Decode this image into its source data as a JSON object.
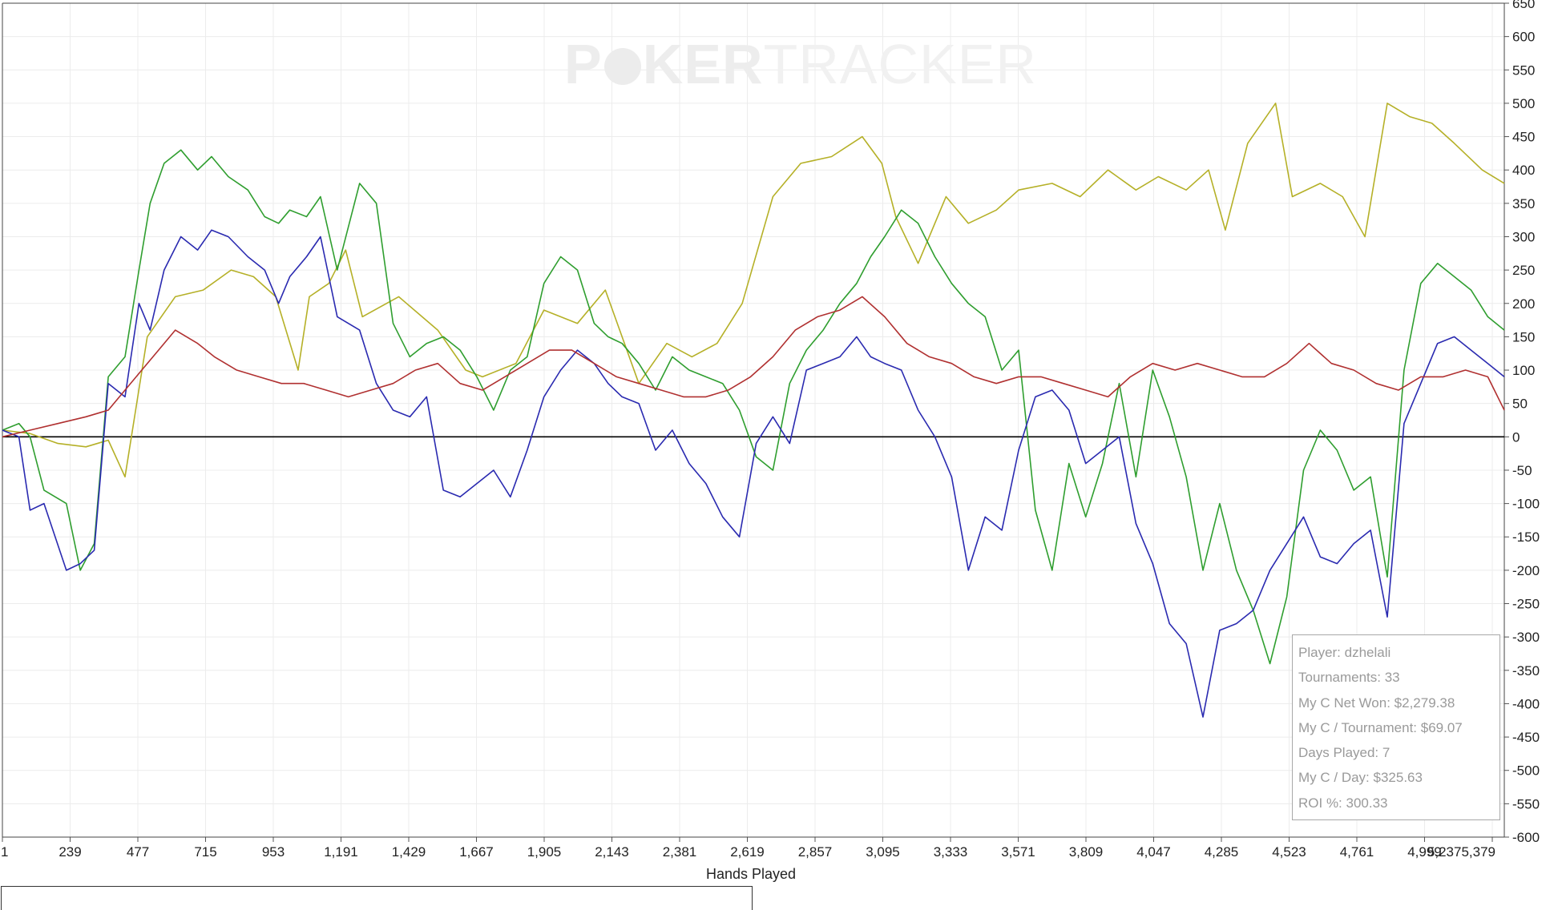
{
  "watermark": {
    "part1": "P",
    "part2": "KER",
    "part3": "TRACKER"
  },
  "stats": {
    "player": "Player: dzhelali",
    "tournaments": "Tournaments: 33",
    "net_won": "My C Net Won: $2,279.38",
    "per_tournament": "My C / Tournament: $69.07",
    "days_played": "Days Played: 7",
    "per_day": "My C / Day: $325.63",
    "roi": "ROI %: 300.33"
  },
  "chart_data": {
    "type": "line",
    "title": "",
    "xlabel": "Hands Played",
    "ylabel": "",
    "xlim": [
      1,
      5379
    ],
    "ylim": [
      -600,
      650
    ],
    "x_tick_labels": [
      "1",
      "239",
      "477",
      "715",
      "953",
      "1,191",
      "1,429",
      "1,667",
      "1,905",
      "2,143",
      "2,381",
      "2,619",
      "2,857",
      "3,095",
      "3,333",
      "3,571",
      "3,809",
      "4,047",
      "4,285",
      "4,523",
      "4,761",
      "4,999",
      "5,2375,379"
    ],
    "y_ticks": [
      650,
      600,
      550,
      500,
      450,
      400,
      350,
      300,
      250,
      200,
      150,
      100,
      50,
      0,
      -50,
      -100,
      -150,
      -200,
      -250,
      -300,
      -350,
      -400,
      -450,
      -500,
      -550,
      -600
    ],
    "grid": true,
    "series": [
      {
        "color": "#b5b027",
        "x": [
          1,
          100,
          200,
          300,
          380,
          440,
          520,
          620,
          720,
          820,
          900,
          980,
          1060,
          1100,
          1170,
          1230,
          1290,
          1420,
          1560,
          1660,
          1720,
          1840,
          1940,
          2060,
          2160,
          2280,
          2380,
          2470,
          2560,
          2650,
          2760,
          2860,
          2970,
          3080,
          3150,
          3200,
          3280,
          3380,
          3460,
          3560,
          3640,
          3760,
          3860,
          3960,
          4060,
          4140,
          4240,
          4320,
          4380,
          4460,
          4560,
          4620,
          4720,
          4800,
          4880,
          4960,
          5040,
          5120,
          5200,
          5300,
          5379
        ],
        "values": [
          10,
          5,
          -10,
          -15,
          -5,
          -60,
          150,
          210,
          220,
          250,
          240,
          210,
          100,
          210,
          230,
          280,
          180,
          210,
          160,
          100,
          90,
          110,
          190,
          170,
          220,
          80,
          140,
          120,
          140,
          200,
          360,
          410,
          420,
          450,
          410,
          330,
          260,
          360,
          320,
          340,
          370,
          380,
          360,
          400,
          370,
          390,
          370,
          400,
          310,
          440,
          500,
          360,
          380,
          360,
          300,
          500,
          480,
          470,
          440,
          400,
          380
        ]
      },
      {
        "color": "#2f9e2f",
        "x": [
          1,
          60,
          100,
          150,
          230,
          280,
          330,
          380,
          440,
          490,
          530,
          580,
          640,
          700,
          750,
          810,
          880,
          940,
          990,
          1030,
          1090,
          1140,
          1200,
          1280,
          1340,
          1400,
          1460,
          1520,
          1580,
          1640,
          1700,
          1760,
          1820,
          1880,
          1940,
          2000,
          2060,
          2120,
          2170,
          2220,
          2280,
          2340,
          2400,
          2460,
          2520,
          2580,
          2640,
          2700,
          2760,
          2820,
          2880,
          2940,
          3000,
          3060,
          3110,
          3160,
          3220,
          3280,
          3340,
          3400,
          3460,
          3520,
          3580,
          3640,
          3700,
          3760,
          3820,
          3880,
          3940,
          4000,
          4060,
          4120,
          4180,
          4240,
          4300,
          4360,
          4420,
          4480,
          4540,
          4600,
          4660,
          4720,
          4780,
          4840,
          4900,
          4960,
          5020,
          5080,
          5140,
          5200,
          5260,
          5320,
          5379
        ],
        "values": [
          10,
          20,
          0,
          -80,
          -100,
          -200,
          -160,
          90,
          120,
          250,
          350,
          410,
          430,
          400,
          420,
          390,
          370,
          330,
          320,
          340,
          330,
          360,
          250,
          380,
          350,
          170,
          120,
          140,
          150,
          130,
          90,
          40,
          100,
          120,
          230,
          270,
          250,
          170,
          150,
          140,
          110,
          70,
          120,
          100,
          90,
          80,
          40,
          -30,
          -50,
          80,
          130,
          160,
          200,
          230,
          270,
          300,
          340,
          320,
          270,
          230,
          200,
          180,
          100,
          130,
          -110,
          -200,
          -40,
          -120,
          -40,
          80,
          -60,
          100,
          30,
          -60,
          -200,
          -100,
          -200,
          -260,
          -340,
          -240,
          -50,
          10,
          -20,
          -80,
          -60,
          -210,
          100,
          230,
          260,
          240,
          220,
          180,
          160
        ]
      },
      {
        "color": "#2a2ab0",
        "x": [
          1,
          60,
          100,
          150,
          230,
          280,
          330,
          380,
          440,
          490,
          530,
          580,
          640,
          700,
          750,
          810,
          880,
          940,
          990,
          1030,
          1090,
          1140,
          1200,
          1280,
          1340,
          1400,
          1460,
          1520,
          1580,
          1640,
          1700,
          1760,
          1820,
          1880,
          1940,
          2000,
          2060,
          2120,
          2170,
          2220,
          2280,
          2340,
          2400,
          2460,
          2520,
          2580,
          2640,
          2700,
          2760,
          2820,
          2880,
          2940,
          3000,
          3060,
          3110,
          3160,
          3220,
          3280,
          3340,
          3400,
          3460,
          3520,
          3580,
          3640,
          3700,
          3760,
          3820,
          3880,
          3940,
          4000,
          4060,
          4120,
          4180,
          4240,
          4300,
          4360,
          4420,
          4480,
          4540,
          4600,
          4660,
          4720,
          4780,
          4840,
          4900,
          4960,
          5020,
          5080,
          5140,
          5200,
          5260,
          5320,
          5379
        ],
        "values": [
          10,
          0,
          -110,
          -100,
          -200,
          -190,
          -170,
          80,
          60,
          200,
          160,
          250,
          300,
          280,
          310,
          300,
          270,
          250,
          200,
          240,
          270,
          300,
          180,
          160,
          80,
          40,
          30,
          60,
          -80,
          -90,
          -70,
          -50,
          -90,
          -20,
          60,
          100,
          130,
          110,
          80,
          60,
          50,
          -20,
          10,
          -40,
          -70,
          -120,
          -150,
          -10,
          30,
          -10,
          100,
          110,
          120,
          150,
          120,
          110,
          100,
          40,
          0,
          -60,
          -200,
          -120,
          -140,
          -20,
          60,
          70,
          40,
          -40,
          -20,
          0,
          -130,
          -190,
          -280,
          -310,
          -420,
          -290,
          -280,
          -260,
          -200,
          -160,
          -120,
          -180,
          -190,
          -160,
          -140,
          -270,
          20,
          80,
          140,
          150,
          130,
          110,
          90
        ]
      },
      {
        "color": "#b03030",
        "x": [
          1,
          100,
          200,
          300,
          380,
          440,
          500,
          560,
          620,
          700,
          760,
          840,
          920,
          1000,
          1080,
          1160,
          1240,
          1320,
          1400,
          1480,
          1560,
          1640,
          1720,
          1800,
          1880,
          1960,
          2040,
          2120,
          2200,
          2280,
          2360,
          2440,
          2520,
          2600,
          2680,
          2760,
          2840,
          2920,
          3000,
          3080,
          3160,
          3240,
          3320,
          3400,
          3480,
          3560,
          3640,
          3720,
          3800,
          3880,
          3960,
          4040,
          4120,
          4200,
          4280,
          4360,
          4440,
          4520,
          4600,
          4680,
          4760,
          4840,
          4920,
          5000,
          5080,
          5160,
          5240,
          5320,
          5379
        ],
        "values": [
          0,
          10,
          20,
          30,
          40,
          70,
          100,
          130,
          160,
          140,
          120,
          100,
          90,
          80,
          80,
          70,
          60,
          70,
          80,
          100,
          110,
          80,
          70,
          90,
          110,
          130,
          130,
          110,
          90,
          80,
          70,
          60,
          60,
          70,
          90,
          120,
          160,
          180,
          190,
          210,
          180,
          140,
          120,
          110,
          90,
          80,
          90,
          90,
          80,
          70,
          60,
          90,
          110,
          100,
          110,
          100,
          90,
          90,
          110,
          140,
          110,
          100,
          80,
          70,
          90,
          90,
          100,
          90,
          40
        ]
      }
    ]
  }
}
